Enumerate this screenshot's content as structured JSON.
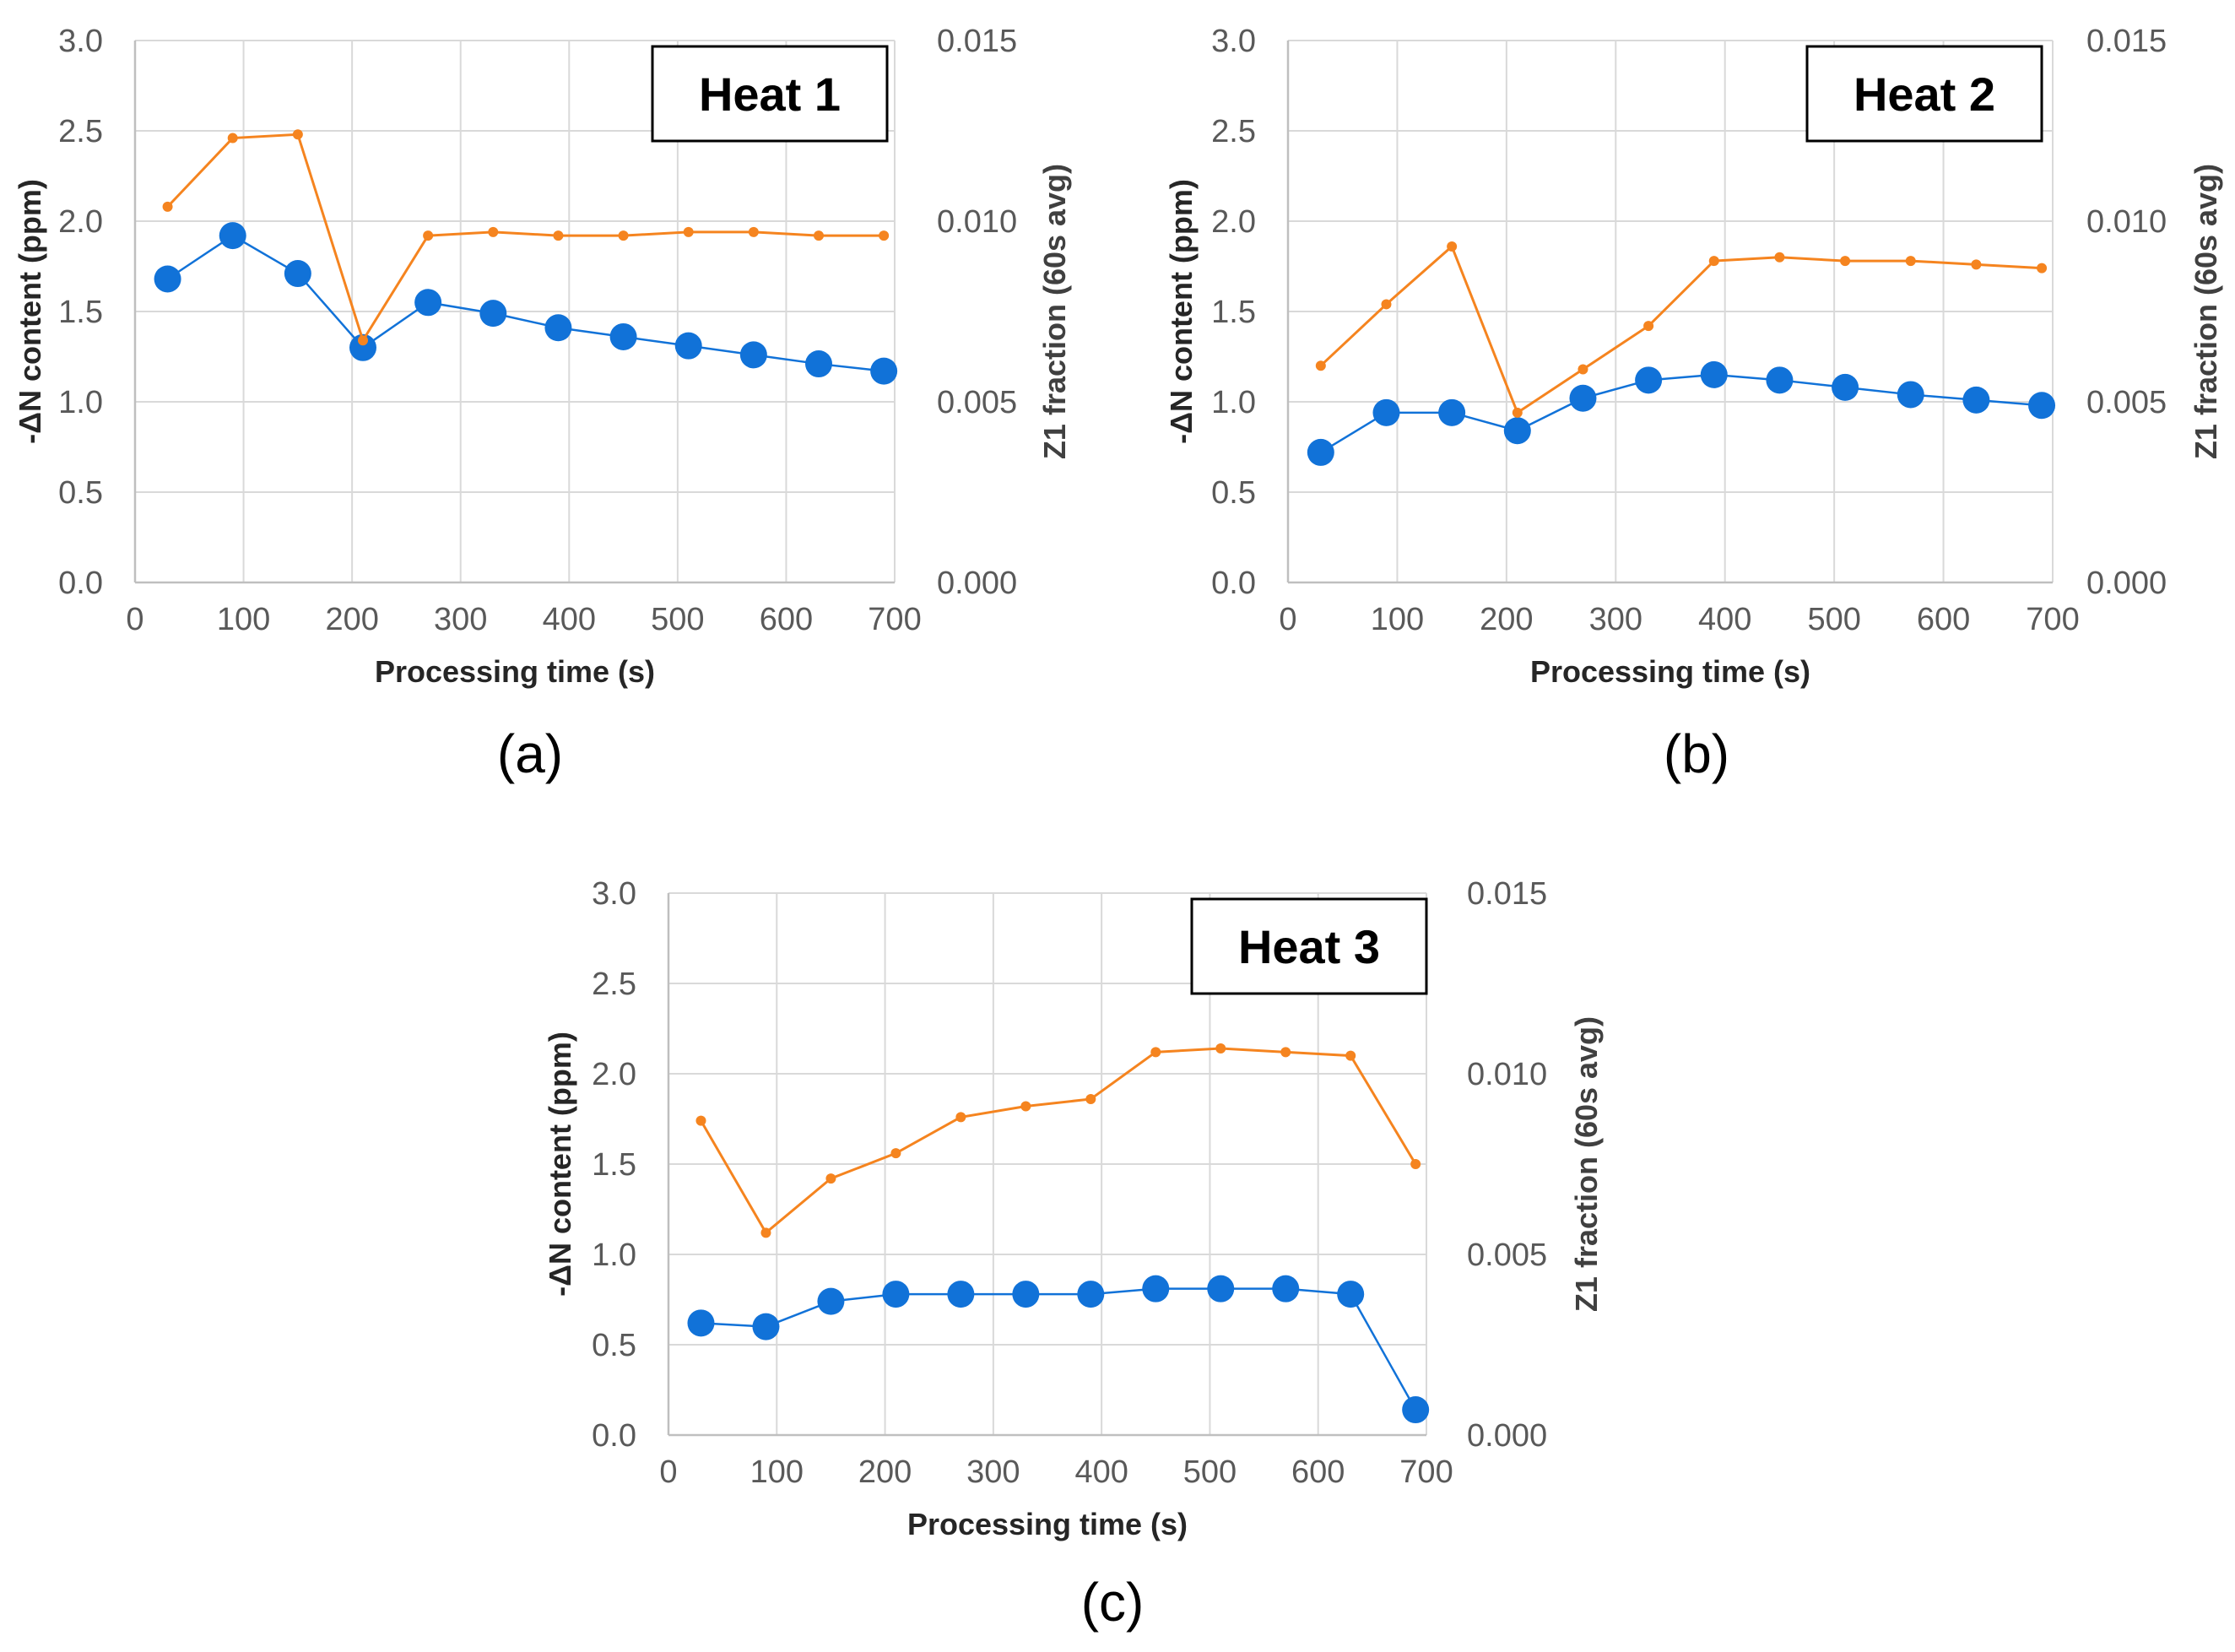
{
  "colors": {
    "blue": "#1172d8",
    "orange": "#f5841f",
    "grid": "#d9d9d9"
  },
  "chart_data": [
    {
      "type": "line",
      "panel_label": "(a)",
      "title": "Heat 1",
      "xlabel": "Processing time (s)",
      "ylabel": "-ΔN content (ppm)",
      "y2label": "Z1 fraction (60s avg)",
      "xlim": [
        0,
        700
      ],
      "ylim": [
        0,
        3.0
      ],
      "y2lim": [
        0,
        0.015
      ],
      "x_ticks": [
        "0",
        "100",
        "200",
        "300",
        "400",
        "500",
        "600",
        "700"
      ],
      "y_ticks": [
        "0.0",
        "0.5",
        "1.0",
        "1.5",
        "2.0",
        "2.5",
        "3.0"
      ],
      "y2_ticks": [
        "0.000",
        "0.005",
        "0.010",
        "0.015"
      ],
      "x": [
        30,
        90,
        150,
        210,
        270,
        330,
        390,
        450,
        510,
        570,
        630,
        690
      ],
      "series": [
        {
          "name": "-ΔN content",
          "axis": "left",
          "color": "#1172d8",
          "values": [
            1.68,
            1.92,
            1.71,
            1.3,
            1.55,
            1.49,
            1.41,
            1.36,
            1.31,
            1.26,
            1.21,
            1.17
          ]
        },
        {
          "name": "Z1 fraction",
          "axis": "right",
          "color": "#f5841f",
          "values": [
            0.0104,
            0.0123,
            0.0124,
            0.0067,
            0.0096,
            0.0097,
            0.0096,
            0.0096,
            0.0097,
            0.0097,
            0.0096,
            0.0096
          ]
        }
      ]
    },
    {
      "type": "line",
      "panel_label": "(b)",
      "title": "Heat 2",
      "xlabel": "Processing time (s)",
      "ylabel": "-ΔN content (ppm)",
      "y2label": "Z1 fraction (60s avg)",
      "xlim": [
        0,
        700
      ],
      "ylim": [
        0,
        3.0
      ],
      "y2lim": [
        0,
        0.015
      ],
      "x_ticks": [
        "0",
        "100",
        "200",
        "300",
        "400",
        "500",
        "600",
        "700"
      ],
      "y_ticks": [
        "0.0",
        "0.5",
        "1.0",
        "1.5",
        "2.0",
        "2.5",
        "3.0"
      ],
      "y2_ticks": [
        "0.000",
        "0.005",
        "0.010",
        "0.015"
      ],
      "x": [
        30,
        90,
        150,
        210,
        270,
        330,
        390,
        450,
        510,
        570,
        630,
        690
      ],
      "series": [
        {
          "name": "-ΔN content",
          "axis": "left",
          "color": "#1172d8",
          "values": [
            0.72,
            0.94,
            0.94,
            0.84,
            1.02,
            1.12,
            1.15,
            1.12,
            1.08,
            1.04,
            1.01,
            0.98
          ]
        },
        {
          "name": "Z1 fraction",
          "axis": "right",
          "color": "#f5841f",
          "values": [
            0.006,
            0.0077,
            0.0093,
            0.0047,
            0.0059,
            0.0071,
            0.0089,
            0.009,
            0.0089,
            0.0089,
            0.0088,
            0.0087
          ]
        }
      ]
    },
    {
      "type": "line",
      "panel_label": "(c)",
      "title": "Heat 3",
      "xlabel": "Processing time (s)",
      "ylabel": "-ΔN content (ppm)",
      "y2label": "Z1 fraction (60s avg)",
      "xlim": [
        0,
        700
      ],
      "ylim": [
        0,
        3.0
      ],
      "y2lim": [
        0,
        0.015
      ],
      "x_ticks": [
        "0",
        "100",
        "200",
        "300",
        "400",
        "500",
        "600",
        "700"
      ],
      "y_ticks": [
        "0.0",
        "0.5",
        "1.0",
        "1.5",
        "2.0",
        "2.5",
        "3.0"
      ],
      "y2_ticks": [
        "0.000",
        "0.005",
        "0.010",
        "0.015"
      ],
      "x": [
        30,
        90,
        150,
        210,
        270,
        330,
        390,
        450,
        510,
        570,
        630,
        690
      ],
      "series": [
        {
          "name": "-ΔN content",
          "axis": "left",
          "color": "#1172d8",
          "values": [
            0.62,
            0.6,
            0.74,
            0.78,
            0.78,
            0.78,
            0.78,
            0.81,
            0.81,
            0.81,
            0.78,
            0.14
          ]
        },
        {
          "name": "Z1 fraction",
          "axis": "right",
          "color": "#f5841f",
          "values": [
            0.0087,
            0.0056,
            0.0071,
            0.0078,
            0.0088,
            0.0091,
            0.0093,
            0.0106,
            0.0107,
            0.0106,
            0.0105,
            0.0075
          ]
        }
      ]
    }
  ]
}
